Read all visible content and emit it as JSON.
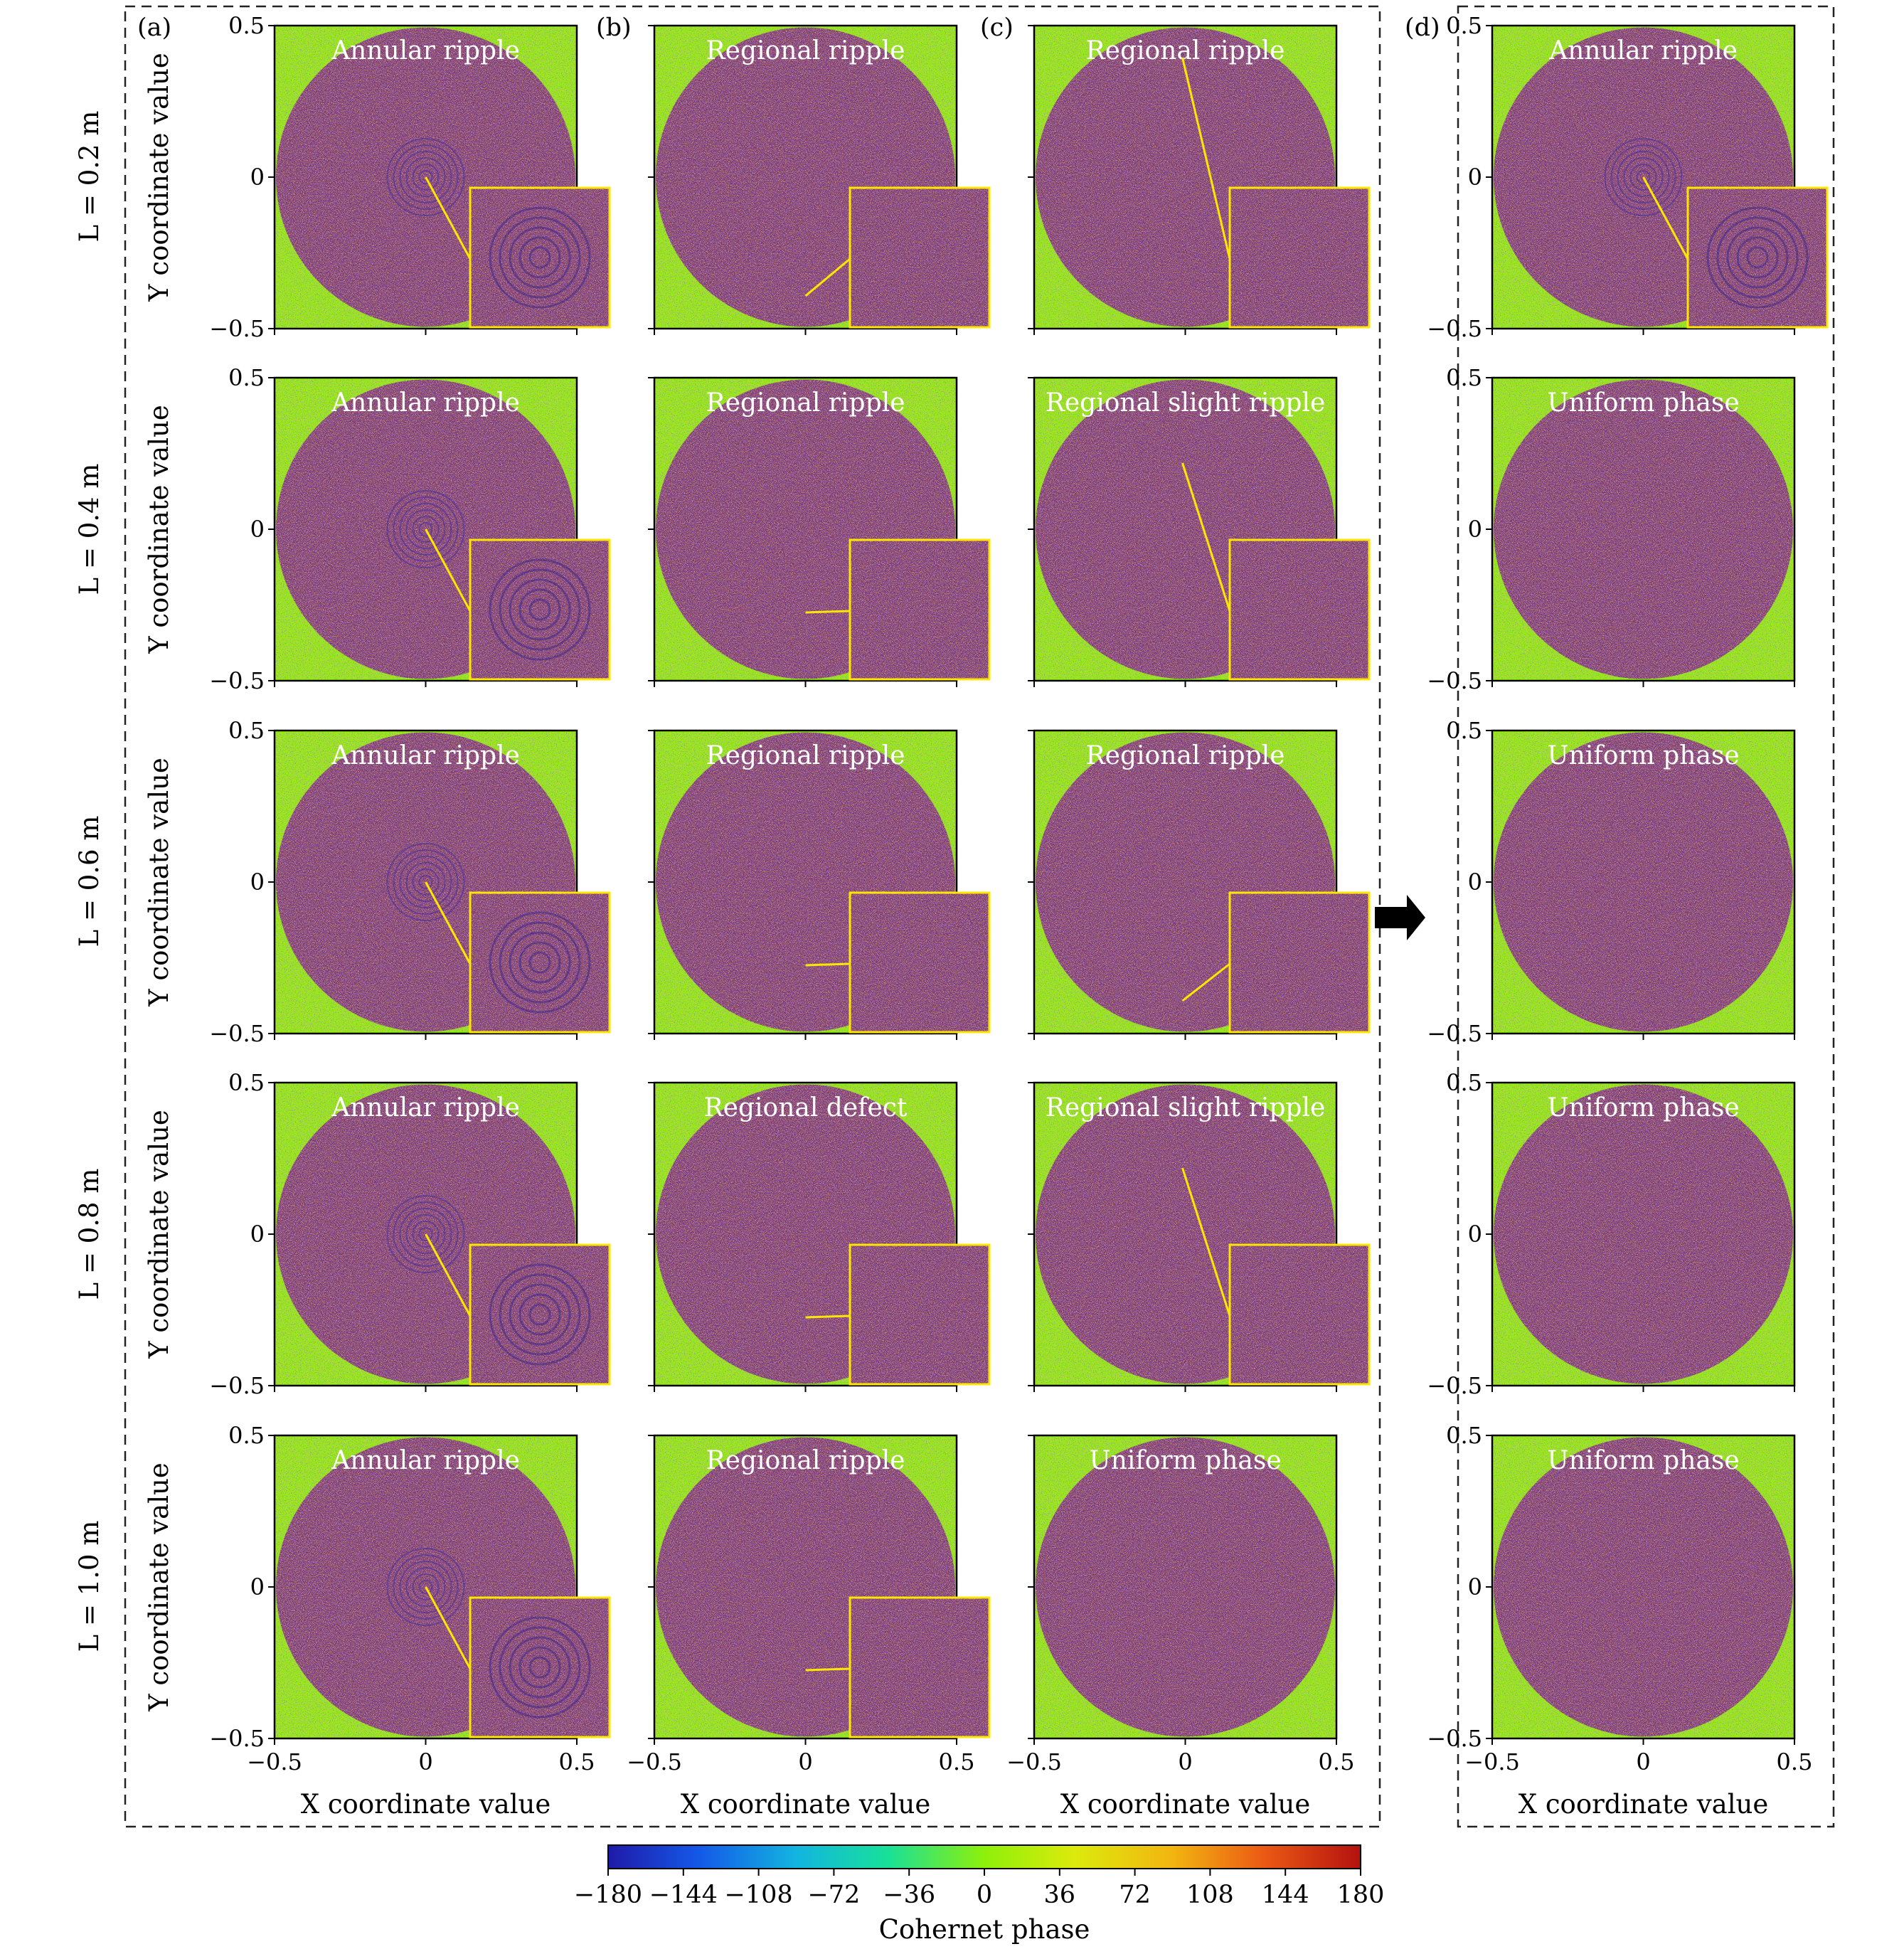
{
  "figure": {
    "panel_letters": [
      "(a)",
      "(b)",
      "(c)",
      "(d)"
    ],
    "x_axis_label": "X coordinate value",
    "y_axis_label": "Y coordinate value",
    "x_ticks": [
      "−0.5",
      "0",
      "0.5"
    ],
    "y_ticks": [
      "0.5",
      "0",
      "−0.5"
    ],
    "row_labels": [
      "L = 0.2 m",
      "L = 0.4 m",
      "L = 0.6 m",
      "L = 0.8 m",
      "L = 1.0 m"
    ],
    "colorbar": {
      "label": "Cohernet phase",
      "ticks": [
        "−180",
        "−144",
        "−108",
        "−72",
        "−36",
        "0",
        "36",
        "72",
        "108",
        "144",
        "180"
      ],
      "range": [
        -180,
        180
      ],
      "colormap": "jet"
    },
    "colors": {
      "background_phase": "#8ef00a",
      "aperture_base": "#7a2f72",
      "inset_border": "#ffe600",
      "indicator_line": "#ffe600",
      "title_text": "#ffffff"
    },
    "arrow_icon": "right-arrow-icon"
  },
  "chart_data": {
    "type": "heatmap",
    "description_units": "phase in degrees",
    "x_range": [
      -0.5,
      0.5
    ],
    "y_range": [
      -0.5,
      0.5
    ],
    "grid": false,
    "columns": [
      {
        "letter": "(a)",
        "titles": [
          "Annular ripple",
          "Annular ripple",
          "Annular ripple",
          "Annular ripple",
          "Annular ripple"
        ],
        "insets": [
          true,
          true,
          true,
          true,
          true
        ]
      },
      {
        "letter": "(b)",
        "titles": [
          "Regional ripple",
          "Regional ripple",
          "Regional ripple",
          "Regional defect",
          "Regional ripple"
        ],
        "insets": [
          true,
          true,
          true,
          true,
          true
        ]
      },
      {
        "letter": "(c)",
        "titles": [
          "Regional ripple",
          "Regional slight ripple",
          "Regional ripple",
          "Regional slight ripple",
          "Uniform phase"
        ],
        "insets": [
          true,
          true,
          true,
          true,
          false
        ]
      },
      {
        "letter": "(d)",
        "titles": [
          "Annular ripple",
          "Uniform phase",
          "Uniform phase",
          "Uniform phase",
          "Uniform phase"
        ],
        "insets": [
          true,
          false,
          false,
          false,
          false
        ]
      }
    ],
    "rows": [
      "L = 0.2 m",
      "L = 0.4 m",
      "L = 0.6 m",
      "L = 0.8 m",
      "L = 1.0 m"
    ]
  }
}
